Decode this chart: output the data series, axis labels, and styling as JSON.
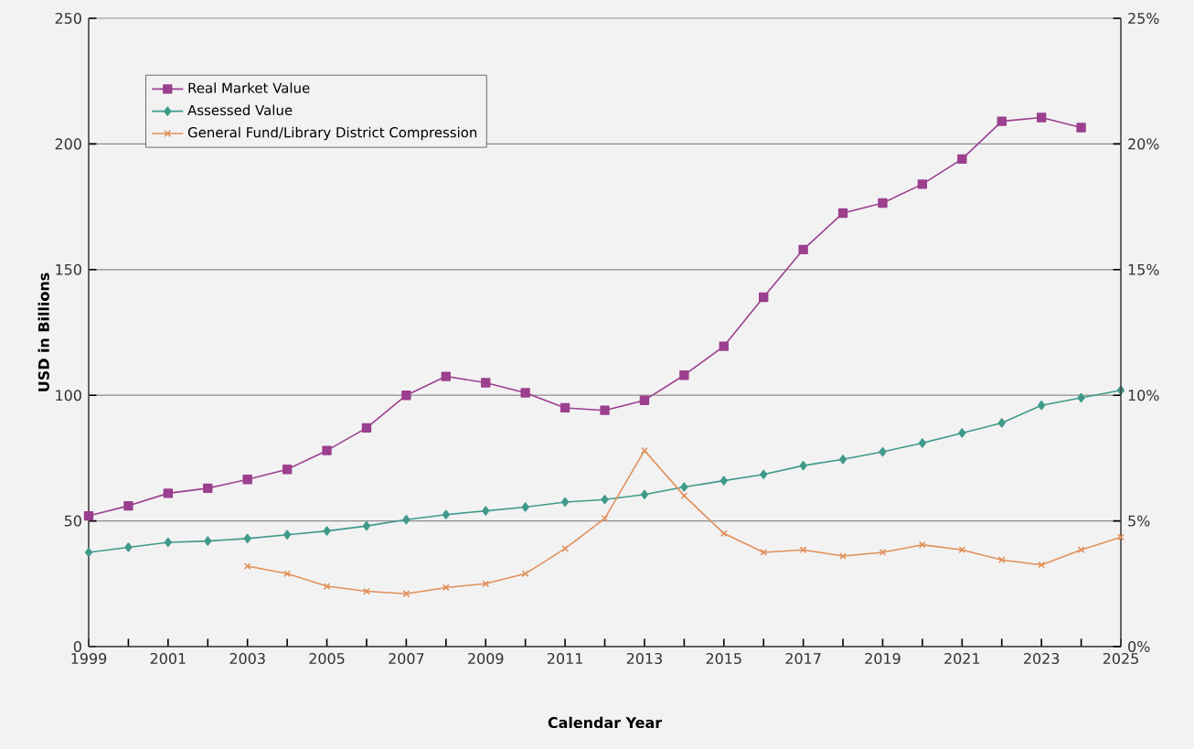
{
  "chart_data": {
    "type": "line",
    "xlabel": "Calendar Year",
    "ylabel": "USD in Billions",
    "xlim": [
      1999,
      2025
    ],
    "ylim": [
      0,
      250
    ],
    "y2lim": [
      0,
      25
    ],
    "xticks": [
      1999,
      {
        "value": 2000,
        "label": null
      },
      2001,
      {
        "value": 2002,
        "label": null
      },
      2003,
      {
        "value": 2004,
        "label": null
      },
      2005,
      {
        "value": 2006,
        "label": null
      },
      2007,
      {
        "value": 2008,
        "label": null
      },
      2009,
      {
        "value": 2010,
        "label": null
      },
      2011,
      {
        "value": 2012,
        "label": null
      },
      2013,
      {
        "value": 2014,
        "label": null
      },
      2015,
      {
        "value": 2016,
        "label": null
      },
      2017,
      {
        "value": 2018,
        "label": null
      },
      2019,
      {
        "value": 2020,
        "label": null
      },
      2021,
      {
        "value": 2022,
        "label": null
      },
      2023,
      {
        "value": 2024,
        "label": null
      },
      2025
    ],
    "yticks": [
      0,
      50,
      100,
      150,
      200,
      250
    ],
    "y2ticks": [
      {
        "value": 0,
        "label": "0%"
      },
      {
        "value": 5,
        "label": "5%"
      },
      {
        "value": 10,
        "label": "10%"
      },
      {
        "value": 15,
        "label": "15%"
      },
      {
        "value": 20,
        "label": "20%"
      },
      {
        "value": 25,
        "label": "25%"
      }
    ],
    "grid": "y",
    "legend": "top left",
    "line_style": "solid",
    "series": [
      {
        "name": "Real Market Value",
        "color": "#9b3f8e",
        "marker": "square",
        "x": [
          1999,
          2000,
          2001,
          2002,
          2003,
          2004,
          2005,
          2006,
          2007,
          2008,
          2009,
          2010,
          2011,
          2012,
          2013,
          2014,
          2015,
          2016,
          2017,
          2018,
          2019,
          2020,
          2021,
          2022,
          2023,
          2024
        ],
        "values": [
          52,
          56,
          61,
          63,
          66.5,
          70.5,
          78,
          87,
          100,
          107.5,
          105,
          101,
          95,
          94,
          98,
          108,
          119.5,
          139,
          158,
          172.5,
          176.5,
          184,
          194,
          209,
          210.5,
          206.5
        ]
      },
      {
        "name": "Assessed Value",
        "color": "#3f9a8a",
        "marker": "diamond",
        "x": [
          1999,
          2000,
          2001,
          2002,
          2003,
          2004,
          2005,
          2006,
          2007,
          2008,
          2009,
          2010,
          2011,
          2012,
          2013,
          2014,
          2015,
          2016,
          2017,
          2018,
          2019,
          2020,
          2021,
          2022,
          2023,
          2024,
          2025
        ],
        "values": [
          37.5,
          39.5,
          41.5,
          42,
          43,
          44.5,
          46,
          48,
          50.5,
          52.5,
          54,
          55.5,
          57.5,
          58.5,
          60.5,
          63.5,
          66,
          68.5,
          72,
          74.5,
          77.5,
          81,
          85,
          89,
          96,
          99,
          102
        ]
      },
      {
        "name": "General Fund/Library District Compression",
        "color": "#e0905a",
        "marker": "cross",
        "axis": "y2",
        "x": [
          2003,
          2004,
          2005,
          2006,
          2007,
          2008,
          2009,
          2010,
          2011,
          2012,
          2013,
          2014,
          2015,
          2016,
          2017,
          2018,
          2019,
          2020,
          2021,
          2022,
          2023,
          2024,
          2025
        ],
        "values": [
          3.2,
          2.9,
          2.4,
          2.2,
          2.1,
          2.35,
          2.5,
          2.9,
          3.9,
          5.1,
          7.8,
          6.0,
          4.5,
          3.75,
          3.85,
          3.6,
          3.75,
          4.05,
          3.85,
          3.45,
          3.25,
          3.85,
          4.35
        ]
      }
    ]
  }
}
